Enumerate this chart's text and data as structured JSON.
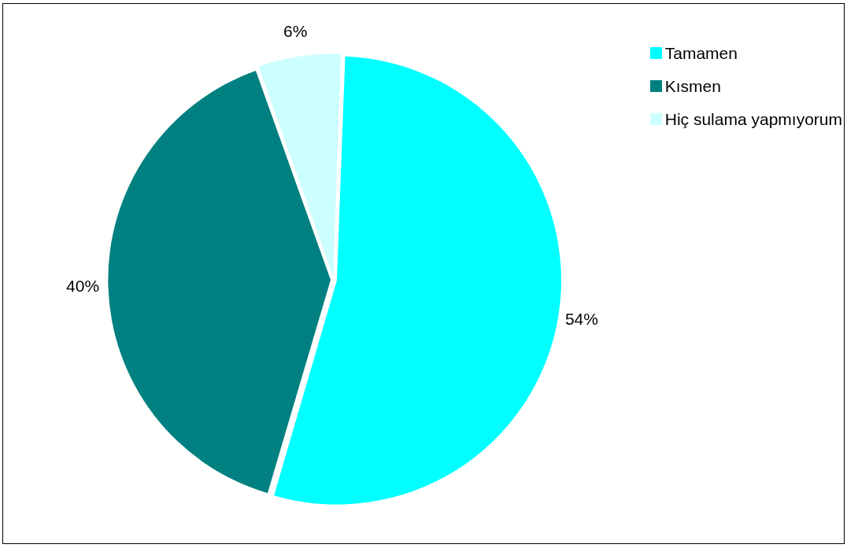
{
  "chart_data": {
    "type": "pie",
    "categories": [
      "Tamamen",
      "Kısmen",
      "Hiç sulama yapmıyorum"
    ],
    "values": [
      54,
      40,
      6
    ],
    "colors": [
      "#00ffff",
      "#008080",
      "#ccffff"
    ],
    "value_labels": [
      "54%",
      "40%",
      "6%"
    ],
    "legend": "top right"
  }
}
